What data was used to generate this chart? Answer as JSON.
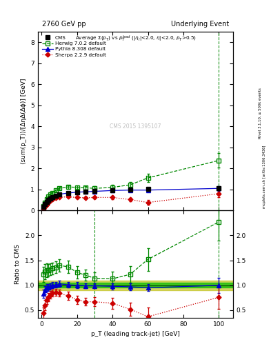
{
  "title_left": "2760 GeV pp",
  "title_right": "Underlying Event",
  "ylabel_main": "⟨sum(p_T)⟩/[ΔηΔ(Δϕ)] [GeV]",
  "ylabel_ratio": "Ratio to CMS",
  "xlabel": "p_T (leading track-jet) [GeV]",
  "watermark": "CMS 2015 1395107",
  "right_label1": "Rivet 3.1.10, ≥ 500k events",
  "right_label2": "mcplots.cern.ch [arXiv:1306.3436]",
  "vline_x1": 30,
  "vline_x2": 100,
  "ylim_main": [
    0,
    8.5
  ],
  "ylim_ratio": [
    0.35,
    2.5
  ],
  "yticks_main": [
    0,
    1,
    2,
    3,
    4,
    5,
    6,
    7,
    8
  ],
  "yticks_ratio": [
    0.5,
    1.0,
    1.5,
    2.0
  ],
  "xlim": [
    -2,
    108
  ],
  "xticks": [
    0,
    20,
    40,
    60,
    80,
    100
  ],
  "cms_x": [
    1,
    2,
    3,
    4,
    5,
    6,
    8,
    10,
    15,
    20,
    25,
    30,
    40,
    50,
    60,
    100
  ],
  "cms_y": [
    0.18,
    0.3,
    0.4,
    0.5,
    0.57,
    0.62,
    0.7,
    0.75,
    0.82,
    0.87,
    0.9,
    0.92,
    0.97,
    1.0,
    1.02,
    1.05
  ],
  "cms_yerr": [
    0.02,
    0.02,
    0.02,
    0.02,
    0.02,
    0.02,
    0.02,
    0.02,
    0.02,
    0.02,
    0.02,
    0.02,
    0.03,
    0.04,
    0.04,
    0.08
  ],
  "herwig_x": [
    1,
    2,
    3,
    4,
    5,
    6,
    8,
    10,
    15,
    20,
    25,
    30,
    40,
    50,
    60,
    100
  ],
  "herwig_y": [
    0.22,
    0.38,
    0.52,
    0.65,
    0.75,
    0.83,
    0.95,
    1.05,
    1.12,
    1.1,
    1.08,
    1.05,
    1.1,
    1.22,
    1.55,
    2.38
  ],
  "herwig_yerr": [
    0.03,
    0.04,
    0.05,
    0.05,
    0.05,
    0.05,
    0.05,
    0.06,
    0.08,
    0.08,
    0.08,
    0.1,
    0.12,
    0.15,
    0.2,
    0.35
  ],
  "pythia_x": [
    1,
    2,
    3,
    4,
    5,
    6,
    8,
    10,
    15,
    20,
    25,
    30,
    40,
    50,
    60,
    100
  ],
  "pythia_y": [
    0.15,
    0.27,
    0.38,
    0.48,
    0.56,
    0.62,
    0.71,
    0.77,
    0.83,
    0.87,
    0.89,
    0.91,
    0.95,
    0.97,
    0.97,
    1.05
  ],
  "pythia_yerr": [
    0.02,
    0.02,
    0.02,
    0.02,
    0.02,
    0.02,
    0.02,
    0.02,
    0.03,
    0.03,
    0.03,
    0.03,
    0.04,
    0.04,
    0.04,
    0.12
  ],
  "sherpa_x": [
    1,
    2,
    3,
    4,
    5,
    6,
    8,
    10,
    15,
    20,
    25,
    30,
    40,
    50,
    60,
    100
  ],
  "sherpa_y": [
    0.08,
    0.18,
    0.28,
    0.38,
    0.46,
    0.52,
    0.6,
    0.63,
    0.65,
    0.62,
    0.6,
    0.62,
    0.62,
    0.52,
    0.38,
    0.8
  ],
  "sherpa_yerr": [
    0.03,
    0.03,
    0.03,
    0.03,
    0.03,
    0.03,
    0.03,
    0.03,
    0.04,
    0.04,
    0.04,
    0.05,
    0.07,
    0.08,
    0.12,
    0.18
  ],
  "herwig_ratio": [
    1.22,
    1.27,
    1.3,
    1.3,
    1.32,
    1.34,
    1.36,
    1.4,
    1.37,
    1.26,
    1.2,
    1.14,
    1.13,
    1.22,
    1.52,
    2.27
  ],
  "herwig_ratio_err": [
    0.15,
    0.15,
    0.14,
    0.13,
    0.12,
    0.12,
    0.12,
    0.12,
    0.13,
    0.12,
    0.11,
    0.12,
    0.14,
    0.17,
    0.23,
    0.38
  ],
  "pythia_ratio": [
    0.83,
    0.9,
    0.95,
    0.96,
    0.98,
    1.0,
    1.01,
    1.03,
    1.01,
    1.0,
    0.99,
    0.99,
    0.98,
    0.97,
    0.95,
    1.0
  ],
  "pythia_ratio_err": [
    0.08,
    0.08,
    0.07,
    0.07,
    0.06,
    0.06,
    0.06,
    0.06,
    0.06,
    0.06,
    0.05,
    0.05,
    0.06,
    0.07,
    0.07,
    0.15
  ],
  "sherpa_ratio": [
    0.44,
    0.6,
    0.7,
    0.76,
    0.81,
    0.84,
    0.86,
    0.84,
    0.79,
    0.71,
    0.67,
    0.67,
    0.64,
    0.52,
    0.37,
    0.76
  ],
  "sherpa_ratio_err": [
    0.12,
    0.1,
    0.08,
    0.08,
    0.07,
    0.07,
    0.07,
    0.07,
    0.08,
    0.08,
    0.08,
    0.09,
    0.11,
    0.13,
    0.18,
    0.23
  ],
  "cms_color": "#000000",
  "herwig_color": "#008800",
  "pythia_color": "#0000cc",
  "sherpa_color": "#cc0000",
  "band_green_inner": "#00bb00",
  "band_yellow_outer": "#bbbb00",
  "vline_color": "#008800"
}
